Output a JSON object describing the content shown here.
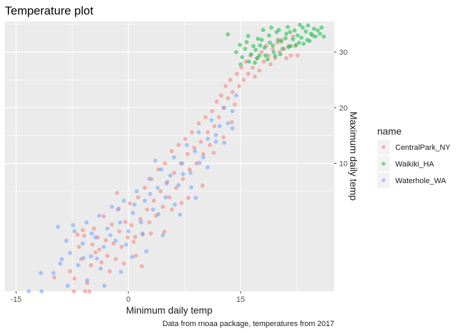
{
  "chart_data": {
    "type": "scatter",
    "title": "Temperature plot",
    "xlabel": "Minimum daily temp",
    "ylabel": "Maximum daily temp",
    "caption": "Data from rnoaa package, temperatures from 2017",
    "xlim": [
      -16.5,
      27.5
    ],
    "ylim": [
      -13,
      35.5
    ],
    "x_ticks": [
      -15,
      0,
      15
    ],
    "x_tick_labels": [
      "-15",
      "0",
      "15"
    ],
    "y_ticks": [
      10,
      20,
      30
    ],
    "y_tick_labels": [
      "10",
      "20",
      "30"
    ],
    "grid": true,
    "point_alpha": 0.5,
    "legend": {
      "title": "name",
      "placement": "right"
    },
    "series": [
      {
        "name": "CentralPark_NY",
        "color": "#f8766d",
        "points": [
          [
            -9.9,
            -10.5
          ],
          [
            -7.8,
            -9.4
          ],
          [
            -7.3,
            -13.0
          ],
          [
            -7.2,
            -10.7
          ],
          [
            -6.8,
            -2.8
          ],
          [
            -6.6,
            -5.0
          ],
          [
            -6.3,
            -7.2
          ],
          [
            -6.1,
            -2.0
          ],
          [
            -5.8,
            -13.0
          ],
          [
            -5.5,
            -11.5
          ],
          [
            -5.2,
            -13.0
          ],
          [
            -5.0,
            -8.3
          ],
          [
            -4.8,
            -4.6
          ],
          [
            -4.6,
            -1.7
          ],
          [
            -4.4,
            -6.0
          ],
          [
            -4.1,
            -3.3
          ],
          [
            -3.9,
            -5.5
          ],
          [
            -3.6,
            -7.8
          ],
          [
            -3.3,
            0.5
          ],
          [
            -3.0,
            -3.8
          ],
          [
            -2.8,
            -6.6
          ],
          [
            -2.5,
            -9.4
          ],
          [
            -2.2,
            -1.0
          ],
          [
            -2.0,
            -4.4
          ],
          [
            -1.7,
            -7.2
          ],
          [
            -1.4,
            1.7
          ],
          [
            -1.2,
            -2.2
          ],
          [
            -0.9,
            -5.0
          ],
          [
            -0.6,
            -8.0
          ],
          [
            -0.4,
            -0.5
          ],
          [
            -0.1,
            -3.3
          ],
          [
            0.2,
            2.8
          ],
          [
            0.4,
            -1.1
          ],
          [
            0.7,
            -4.1
          ],
          [
            1.0,
            -6.6
          ],
          [
            1.3,
            3.9
          ],
          [
            1.6,
            0.0
          ],
          [
            1.9,
            -2.8
          ],
          [
            2.2,
            5.6
          ],
          [
            2.5,
            1.7
          ],
          [
            2.8,
            -0.6
          ],
          [
            3.1,
            7.2
          ],
          [
            3.4,
            3.3
          ],
          [
            3.7,
            0.6
          ],
          [
            4.0,
            8.9
          ],
          [
            4.3,
            5.0
          ],
          [
            4.6,
            2.2
          ],
          [
            4.9,
            10.0
          ],
          [
            5.2,
            6.7
          ],
          [
            5.5,
            3.9
          ],
          [
            5.8,
            12.2
          ],
          [
            6.1,
            8.3
          ],
          [
            6.4,
            5.6
          ],
          [
            6.7,
            13.3
          ],
          [
            7.0,
            10.0
          ],
          [
            7.3,
            7.2
          ],
          [
            7.6,
            14.4
          ],
          [
            7.9,
            11.7
          ],
          [
            8.2,
            8.9
          ],
          [
            8.5,
            15.6
          ],
          [
            8.8,
            12.8
          ],
          [
            9.1,
            10.0
          ],
          [
            9.4,
            17.2
          ],
          [
            9.7,
            13.9
          ],
          [
            10.0,
            11.7
          ],
          [
            10.3,
            18.3
          ],
          [
            10.6,
            15.6
          ],
          [
            10.9,
            13.3
          ],
          [
            11.2,
            19.4
          ],
          [
            11.5,
            16.7
          ],
          [
            11.8,
            21.1
          ],
          [
            12.1,
            18.3
          ],
          [
            12.4,
            22.2
          ],
          [
            12.7,
            20.0
          ],
          [
            13.0,
            23.9
          ],
          [
            13.3,
            21.7
          ],
          [
            13.6,
            25.0
          ],
          [
            13.9,
            22.8
          ],
          [
            14.2,
            20.6
          ],
          [
            14.5,
            26.1
          ],
          [
            14.8,
            23.9
          ],
          [
            15.1,
            27.2
          ],
          [
            15.4,
            25.0
          ],
          [
            15.7,
            28.3
          ],
          [
            16.0,
            26.1
          ],
          [
            16.3,
            29.4
          ],
          [
            16.6,
            27.2
          ],
          [
            16.9,
            25.6
          ],
          [
            17.2,
            28.9
          ],
          [
            17.5,
            26.7
          ],
          [
            17.8,
            30.0
          ],
          [
            18.1,
            28.3
          ],
          [
            18.4,
            31.1
          ],
          [
            18.7,
            29.4
          ],
          [
            19.0,
            27.8
          ],
          [
            19.3,
            30.6
          ],
          [
            19.6,
            28.9
          ],
          [
            19.9,
            31.7
          ],
          [
            20.2,
            30.0
          ],
          [
            20.5,
            32.2
          ],
          [
            20.8,
            30.6
          ],
          [
            21.1,
            28.9
          ],
          [
            21.4,
            31.1
          ],
          [
            21.7,
            29.4
          ],
          [
            22.0,
            32.8
          ],
          [
            22.3,
            31.1
          ],
          [
            22.6,
            29.4
          ],
          [
            -5.9,
            -3.0
          ],
          [
            -1.5,
            4.7
          ],
          [
            0.9,
            -3.2
          ],
          [
            3.0,
            -2.6
          ],
          [
            5.8,
            1.7
          ],
          [
            8.0,
            3.8
          ],
          [
            9.9,
            6.0
          ],
          [
            11.4,
            11.9
          ],
          [
            12.7,
            14.7
          ],
          [
            13.8,
            17.4
          ],
          [
            1.8,
            -8.5
          ],
          [
            4.8,
            -2.3
          ],
          [
            7.1,
            2.9
          ]
        ]
      },
      {
        "name": "Waikiki_HA",
        "color": "#00ba38",
        "points": [
          [
            13.3,
            33.2
          ],
          [
            14.4,
            30.0
          ],
          [
            15.0,
            27.8
          ],
          [
            15.6,
            30.6
          ],
          [
            16.1,
            28.3
          ],
          [
            16.7,
            31.1
          ],
          [
            17.2,
            28.9
          ],
          [
            17.8,
            32.2
          ],
          [
            18.3,
            29.4
          ],
          [
            18.9,
            31.7
          ],
          [
            19.4,
            30.0
          ],
          [
            20.0,
            32.2
          ],
          [
            20.6,
            30.6
          ],
          [
            21.1,
            33.3
          ],
          [
            21.7,
            31.1
          ],
          [
            22.2,
            33.9
          ],
          [
            22.8,
            31.7
          ],
          [
            23.3,
            34.4
          ],
          [
            23.9,
            32.2
          ],
          [
            24.4,
            33.3
          ],
          [
            25.0,
            32.8
          ],
          [
            25.6,
            33.3
          ],
          [
            26.1,
            32.8
          ],
          [
            15.2,
            29.1
          ],
          [
            15.8,
            31.8
          ],
          [
            16.4,
            29.6
          ],
          [
            17.0,
            30.4
          ],
          [
            17.6,
            31.2
          ],
          [
            18.2,
            30.8
          ],
          [
            18.8,
            33.0
          ],
          [
            19.3,
            31.2
          ],
          [
            19.8,
            33.6
          ],
          [
            20.4,
            31.9
          ],
          [
            21.0,
            32.5
          ],
          [
            21.6,
            33.6
          ],
          [
            22.0,
            32.3
          ],
          [
            22.6,
            33.0
          ],
          [
            23.1,
            32.6
          ],
          [
            23.7,
            33.7
          ],
          [
            24.2,
            32.0
          ],
          [
            24.8,
            34.2
          ],
          [
            25.3,
            33.9
          ],
          [
            16.9,
            28.1
          ],
          [
            17.5,
            29.4
          ],
          [
            18.6,
            28.7
          ],
          [
            19.6,
            29.3
          ],
          [
            20.3,
            29.6
          ],
          [
            21.4,
            30.9
          ],
          [
            22.4,
            31.3
          ],
          [
            23.4,
            31.5
          ],
          [
            24.6,
            33.0
          ],
          [
            14.9,
            31.3
          ],
          [
            16.0,
            32.9
          ],
          [
            17.3,
            32.4
          ],
          [
            18.0,
            34.0
          ],
          [
            19.1,
            34.4
          ],
          [
            20.1,
            34.0
          ],
          [
            21.3,
            34.5
          ],
          [
            22.9,
            34.9
          ],
          [
            24.0,
            34.8
          ],
          [
            25.8,
            34.4
          ]
        ]
      },
      {
        "name": "Waterhole_WA",
        "color": "#619cff",
        "points": [
          [
            -13.3,
            -13.0
          ],
          [
            -11.7,
            -9.7
          ],
          [
            -10.0,
            -9.7
          ],
          [
            -9.4,
            -1.4
          ],
          [
            -8.9,
            -7.2
          ],
          [
            -8.3,
            -3.9
          ],
          [
            -7.8,
            -6.1
          ],
          [
            -7.2,
            -2.2
          ],
          [
            -6.7,
            -8.3
          ],
          [
            -6.1,
            -4.4
          ],
          [
            -5.6,
            -0.6
          ],
          [
            -5.0,
            -6.7
          ],
          [
            -4.4,
            -3.3
          ],
          [
            -3.9,
            0.6
          ],
          [
            -3.3,
            -5.0
          ],
          [
            -2.8,
            -1.7
          ],
          [
            -2.2,
            2.2
          ],
          [
            -1.7,
            -3.9
          ],
          [
            -1.1,
            -0.6
          ],
          [
            -0.6,
            3.3
          ],
          [
            0.0,
            -2.2
          ],
          [
            0.6,
            1.1
          ],
          [
            1.1,
            5.0
          ],
          [
            1.7,
            -0.6
          ],
          [
            2.2,
            3.3
          ],
          [
            2.8,
            7.2
          ],
          [
            3.3,
            1.7
          ],
          [
            3.9,
            5.6
          ],
          [
            4.4,
            8.9
          ],
          [
            5.0,
            3.9
          ],
          [
            5.6,
            7.8
          ],
          [
            6.1,
            11.1
          ],
          [
            6.7,
            6.1
          ],
          [
            7.2,
            10.0
          ],
          [
            7.8,
            13.3
          ],
          [
            8.3,
            8.3
          ],
          [
            8.9,
            12.2
          ],
          [
            9.4,
            15.6
          ],
          [
            10.0,
            11.1
          ],
          [
            10.6,
            14.4
          ],
          [
            11.1,
            17.8
          ],
          [
            11.7,
            13.9
          ],
          [
            12.2,
            16.7
          ],
          [
            12.8,
            20.0
          ],
          [
            13.3,
            17.2
          ],
          [
            13.9,
            19.4
          ],
          [
            14.4,
            22.2
          ],
          [
            -11.6,
            -13.0
          ],
          [
            -9.1,
            -8.0
          ],
          [
            -7.4,
            -1.1
          ],
          [
            -6.0,
            -7.0
          ],
          [
            -4.9,
            -2.6
          ],
          [
            -3.7,
            -8.9
          ],
          [
            -2.4,
            -2.9
          ],
          [
            -1.3,
            1.9
          ],
          [
            -0.3,
            -4.6
          ],
          [
            0.8,
            2.6
          ],
          [
            1.9,
            -2.6
          ],
          [
            2.9,
            4.5
          ],
          [
            4.0,
            0.9
          ],
          [
            5.1,
            6.4
          ],
          [
            6.2,
            2.6
          ],
          [
            7.3,
            8.1
          ],
          [
            8.4,
            5.7
          ],
          [
            9.5,
            10.1
          ],
          [
            10.6,
            9.3
          ],
          [
            11.7,
            15.1
          ],
          [
            12.8,
            13.7
          ],
          [
            13.9,
            16.3
          ],
          [
            -5.5,
            -11.0
          ],
          [
            -3.2,
            -12.0
          ],
          [
            -1.0,
            -9.5
          ],
          [
            0.5,
            -6.8
          ],
          [
            2.4,
            -5.8
          ],
          [
            4.6,
            -2.9
          ],
          [
            6.9,
            0.8
          ],
          [
            9.0,
            3.8
          ],
          [
            -8.1,
            -12.0
          ],
          [
            -4.2,
            -7.1
          ],
          [
            3.6,
            10.5
          ]
        ]
      }
    ]
  }
}
